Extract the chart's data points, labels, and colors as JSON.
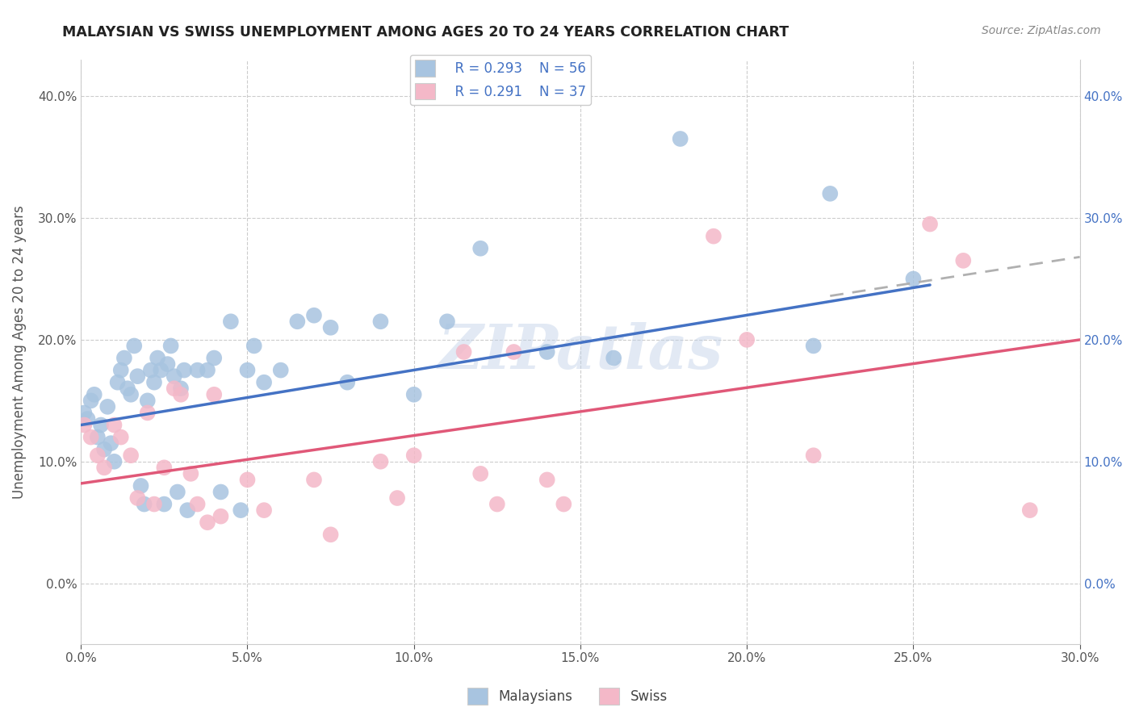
{
  "title": "MALAYSIAN VS SWISS UNEMPLOYMENT AMONG AGES 20 TO 24 YEARS CORRELATION CHART",
  "source": "Source: ZipAtlas.com",
  "ylabel_label": "Unemployment Among Ages 20 to 24 years",
  "xlim": [
    0.0,
    0.3
  ],
  "ylim": [
    -0.05,
    0.43
  ],
  "x_ticks": [
    0.0,
    0.05,
    0.1,
    0.15,
    0.2,
    0.25,
    0.3
  ],
  "y_ticks": [
    0.0,
    0.1,
    0.2,
    0.3,
    0.4
  ],
  "legend_r1": "R = 0.293",
  "legend_n1": "N = 56",
  "legend_r2": "R = 0.291",
  "legend_n2": "N = 37",
  "color_malaysian": "#a8c4e0",
  "color_swiss": "#f4b8c8",
  "color_line_malaysian": "#4472c4",
  "color_line_swiss": "#e05878",
  "color_line_dashed": "#b0b0b0",
  "mal_line_x": [
    0.0,
    0.255
  ],
  "mal_line_y": [
    0.13,
    0.245
  ],
  "swi_line_x": [
    0.0,
    0.3
  ],
  "swi_line_y": [
    0.082,
    0.2
  ],
  "dash_line_x": [
    0.225,
    0.3
  ],
  "dash_line_y": [
    0.236,
    0.268
  ],
  "malaysian_x": [
    0.001,
    0.002,
    0.003,
    0.004,
    0.005,
    0.006,
    0.007,
    0.008,
    0.009,
    0.01,
    0.011,
    0.012,
    0.013,
    0.014,
    0.015,
    0.016,
    0.017,
    0.018,
    0.019,
    0.02,
    0.021,
    0.022,
    0.023,
    0.024,
    0.025,
    0.026,
    0.027,
    0.028,
    0.029,
    0.03,
    0.031,
    0.032,
    0.035,
    0.038,
    0.04,
    0.042,
    0.045,
    0.048,
    0.05,
    0.052,
    0.055,
    0.06,
    0.065,
    0.07,
    0.075,
    0.08,
    0.09,
    0.1,
    0.11,
    0.12,
    0.14,
    0.16,
    0.18,
    0.22,
    0.225,
    0.25
  ],
  "malaysian_y": [
    0.14,
    0.135,
    0.15,
    0.155,
    0.12,
    0.13,
    0.11,
    0.145,
    0.115,
    0.1,
    0.165,
    0.175,
    0.185,
    0.16,
    0.155,
    0.195,
    0.17,
    0.08,
    0.065,
    0.15,
    0.175,
    0.165,
    0.185,
    0.175,
    0.065,
    0.18,
    0.195,
    0.17,
    0.075,
    0.16,
    0.175,
    0.06,
    0.175,
    0.175,
    0.185,
    0.075,
    0.215,
    0.06,
    0.175,
    0.195,
    0.165,
    0.175,
    0.215,
    0.22,
    0.21,
    0.165,
    0.215,
    0.155,
    0.215,
    0.275,
    0.19,
    0.185,
    0.365,
    0.195,
    0.32,
    0.25
  ],
  "swiss_x": [
    0.001,
    0.003,
    0.005,
    0.007,
    0.01,
    0.012,
    0.015,
    0.017,
    0.02,
    0.022,
    0.025,
    0.028,
    0.03,
    0.033,
    0.035,
    0.038,
    0.04,
    0.042,
    0.05,
    0.055,
    0.07,
    0.075,
    0.09,
    0.095,
    0.1,
    0.115,
    0.12,
    0.125,
    0.13,
    0.14,
    0.145,
    0.19,
    0.2,
    0.22,
    0.255,
    0.265,
    0.285
  ],
  "swiss_y": [
    0.13,
    0.12,
    0.105,
    0.095,
    0.13,
    0.12,
    0.105,
    0.07,
    0.14,
    0.065,
    0.095,
    0.16,
    0.155,
    0.09,
    0.065,
    0.05,
    0.155,
    0.055,
    0.085,
    0.06,
    0.085,
    0.04,
    0.1,
    0.07,
    0.105,
    0.19,
    0.09,
    0.065,
    0.19,
    0.085,
    0.065,
    0.285,
    0.2,
    0.105,
    0.295,
    0.265,
    0.06
  ],
  "background_color": "#ffffff",
  "watermark_text": "ZIPatlas",
  "watermark_color": "#c0d0e8",
  "watermark_alpha": 0.45,
  "title_color": "#222222",
  "source_color": "#888888",
  "tick_color": "#555555",
  "grid_color": "#cccccc",
  "ylabel_color": "#555555"
}
